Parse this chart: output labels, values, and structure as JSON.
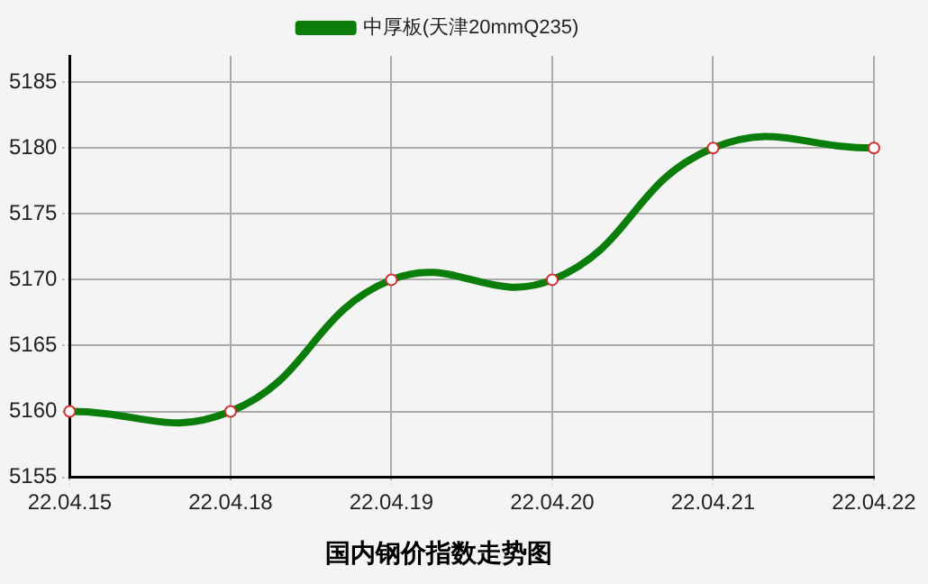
{
  "chart_data": {
    "type": "line",
    "title": "国内钢价指数走势图",
    "categories": [
      "22.04.15",
      "22.04.18",
      "22.04.19",
      "22.04.20",
      "22.04.21",
      "22.04.22"
    ],
    "series": [
      {
        "name": "中厚板(天津20mmQ235)",
        "color": "#0a7d0a",
        "values": [
          5160,
          5160,
          5170,
          5170,
          5180,
          5180
        ]
      }
    ],
    "ylim": [
      5155,
      5187
    ],
    "yticks": [
      5155,
      5160,
      5165,
      5170,
      5175,
      5180,
      5185
    ],
    "grid": true,
    "legend": "top",
    "marker": "circle"
  }
}
